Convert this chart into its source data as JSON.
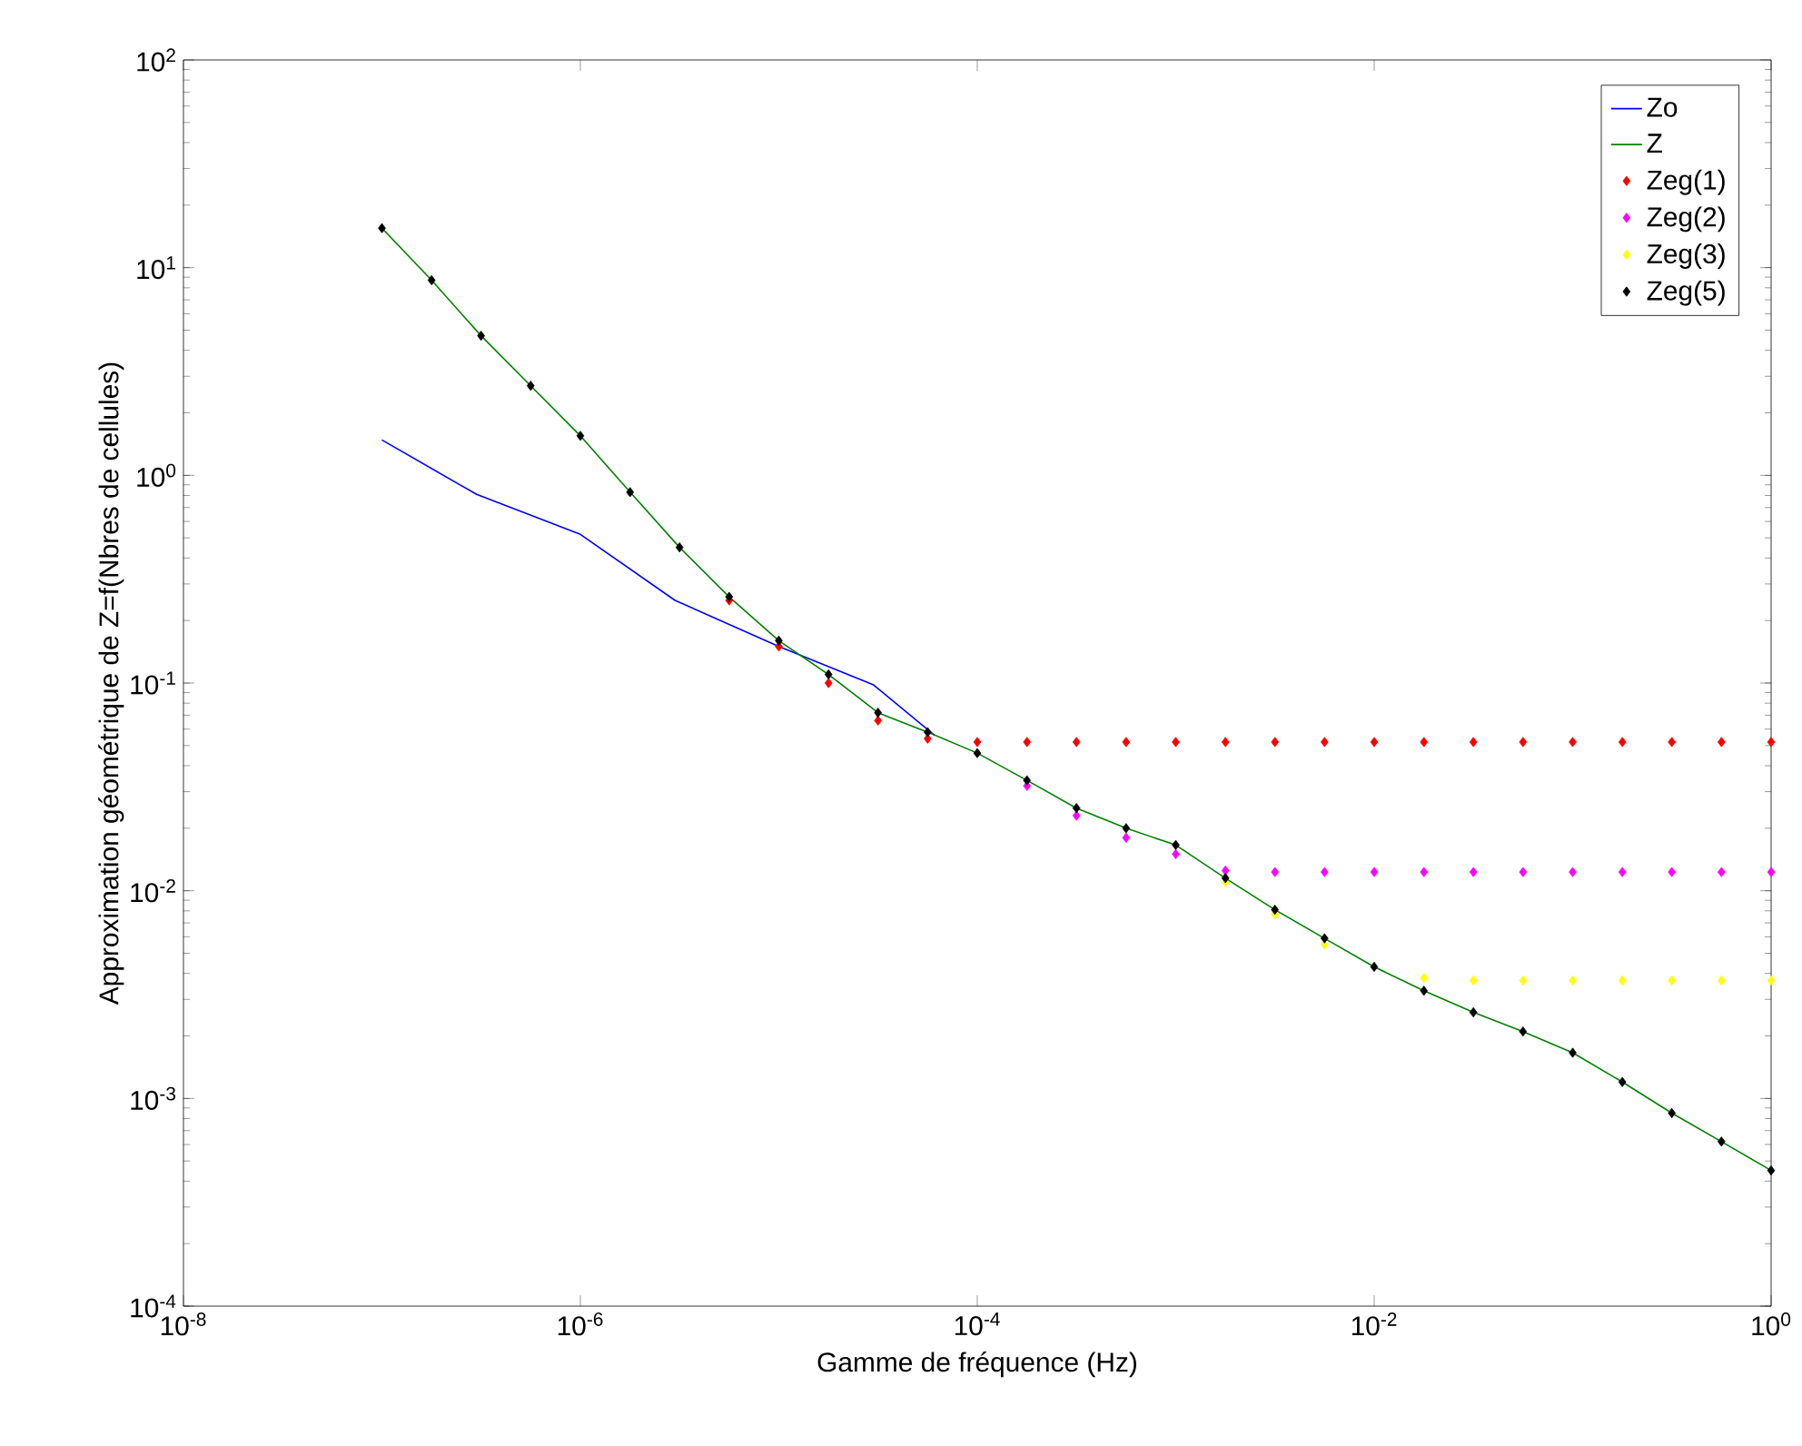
{
  "chart_data": {
    "type": "line",
    "xlabel": "Gamme de fréquence (Hz)",
    "ylabel": "Approximation géométrique de Z=f(Nbres de cellules)",
    "log": "xy",
    "legend": "top right",
    "xlim": [
      1e-08,
      1
    ],
    "ylim": [
      0.0001,
      100
    ],
    "xticks": [
      {
        "value": 1e-08,
        "label": "10$^{-8}$"
      },
      {
        "value": 1e-06,
        "label": "10$^{-6}$"
      },
      {
        "value": 0.0001,
        "label": "10$^{-4}$"
      },
      {
        "value": 0.01,
        "label": "10$^{-2}$"
      },
      {
        "value": 1,
        "label": "10$^{0}$"
      }
    ],
    "yticks": [
      {
        "value": 0.0001,
        "label": "10$^{-4}$"
      },
      {
        "value": 0.001,
        "label": "10$^{-3}$"
      },
      {
        "value": 0.01,
        "label": "10$^{-2}$"
      },
      {
        "value": 0.1,
        "label": "10$^{-1}$"
      },
      {
        "value": 1,
        "label": "10$^{0}$"
      },
      {
        "value": 10,
        "label": "10$^{1}$"
      },
      {
        "value": 100,
        "label": "10$^{2}$"
      }
    ],
    "x": [
      1e-07,
      1.78e-07,
      3.16e-07,
      5.62e-07,
      1e-06,
      1.78e-06,
      3.16e-06,
      5.62e-06,
      1e-05,
      1.78e-05,
      3.16e-05,
      5.62e-05,
      0.0001,
      0.000178,
      0.000316,
      0.000562,
      0.001,
      0.00178,
      0.00316,
      0.00562,
      0.01,
      0.0178,
      0.0316,
      0.0562,
      0.1,
      0.178,
      0.316,
      0.562,
      1
    ],
    "series": [
      {
        "name": "Zo",
        "type": "line",
        "color": "#0000ff",
        "x": [
          1e-07,
          3e-07,
          1e-06,
          3e-06,
          1e-05,
          3e-05,
          6.1e-05
        ],
        "values": [
          1.48,
          0.81,
          0.52,
          0.25,
          0.15,
          0.098,
          0.056
        ]
      },
      {
        "name": "Z",
        "type": "line",
        "color": "#008000",
        "values": [
          15.5,
          8.7,
          4.7,
          2.7,
          1.55,
          0.83,
          0.45,
          0.26,
          0.16,
          0.11,
          0.072,
          0.058,
          0.046,
          0.034,
          0.025,
          0.02,
          0.0166,
          0.0115,
          0.0081,
          0.0059,
          0.0043,
          0.0033,
          0.0026,
          0.0021,
          0.00166,
          0.0012,
          0.00085,
          0.00062,
          0.00045
        ]
      },
      {
        "name": "Zeg(1)",
        "type": "scatter",
        "marker": "diamond",
        "color": "#ff0000",
        "values": [
          null,
          null,
          null,
          null,
          null,
          null,
          null,
          0.25,
          0.15,
          0.1,
          0.066,
          0.054,
          0.052,
          0.052,
          0.052,
          0.052,
          0.052,
          0.052,
          0.052,
          0.052,
          0.052,
          0.052,
          0.052,
          0.052,
          0.052,
          0.052,
          0.052,
          0.052,
          0.052
        ]
      },
      {
        "name": "Zeg(2)",
        "type": "scatter",
        "marker": "diamond",
        "color": "#ff00ff",
        "values": [
          null,
          null,
          null,
          null,
          null,
          null,
          null,
          null,
          null,
          null,
          null,
          null,
          null,
          0.032,
          0.023,
          0.018,
          0.015,
          0.0125,
          0.0123,
          0.0123,
          0.0123,
          0.0123,
          0.0123,
          0.0123,
          0.0123,
          0.0123,
          0.0123,
          0.0123,
          0.0123
        ]
      },
      {
        "name": "Zeg(3)",
        "type": "scatter",
        "marker": "diamond",
        "color": "#ffff00",
        "values": [
          null,
          null,
          null,
          null,
          null,
          null,
          null,
          null,
          null,
          null,
          null,
          null,
          null,
          null,
          null,
          null,
          null,
          0.011,
          0.0077,
          0.0055,
          null,
          0.0038,
          0.0037,
          0.0037,
          0.0037,
          0.0037,
          0.0037,
          0.0037,
          0.0037
        ]
      },
      {
        "name": "Zeg(5)",
        "type": "scatter",
        "marker": "diamond",
        "color": "#000000",
        "values": [
          15.5,
          8.7,
          4.7,
          2.7,
          1.55,
          0.83,
          0.45,
          0.26,
          0.16,
          0.11,
          0.072,
          0.058,
          0.046,
          0.034,
          0.025,
          0.02,
          0.0166,
          0.0115,
          0.0081,
          0.0059,
          0.0043,
          0.0033,
          0.0026,
          0.0021,
          0.00166,
          0.0012,
          0.00085,
          0.00062,
          0.00045
        ]
      }
    ]
  }
}
